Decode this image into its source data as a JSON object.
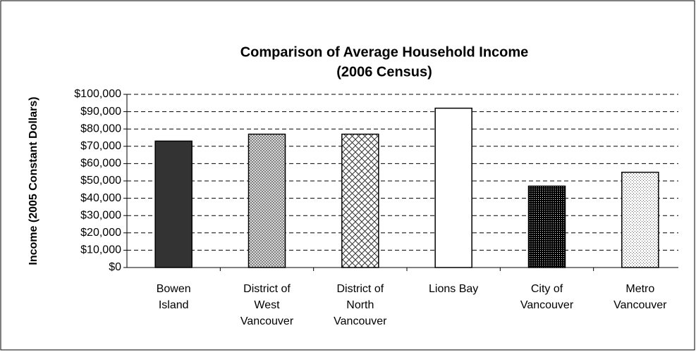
{
  "chart_data": {
    "type": "bar",
    "title": "Comparison of Average Household Income",
    "subtitle": "(2006 Census)",
    "y_label": "Income (2005 Constant Dollars)",
    "categories": [
      [
        "Bowen",
        "Island"
      ],
      [
        "District of",
        "West",
        "Vancouver"
      ],
      [
        "District of",
        "North",
        "Vancouver"
      ],
      [
        "Lions Bay"
      ],
      [
        "City of",
        "Vancouver"
      ],
      [
        "Metro",
        "Vancouver"
      ]
    ],
    "values": [
      73000,
      77000,
      77000,
      92000,
      47000,
      55000
    ],
    "fills": [
      "#333333",
      "crosshatch-fine",
      "crosshatch",
      "#ffffff",
      "dots-dense",
      "dots-light"
    ],
    "ylim": [
      0,
      100000
    ],
    "yticks": [
      {
        "value": 0,
        "label": "$0"
      },
      {
        "value": 10000,
        "label": "$10,000"
      },
      {
        "value": 20000,
        "label": "$20,000"
      },
      {
        "value": 30000,
        "label": "$30,000"
      },
      {
        "value": 40000,
        "label": "$40,000"
      },
      {
        "value": 50000,
        "label": "$50,000"
      },
      {
        "value": 60000,
        "label": "$60,000"
      },
      {
        "value": 70000,
        "label": "$70,000"
      },
      {
        "value": 80000,
        "label": "$80,000"
      },
      {
        "value": 90000,
        "label": "$90,000"
      },
      {
        "value": 100000,
        "label": "$100,000"
      }
    ],
    "grid": true
  }
}
